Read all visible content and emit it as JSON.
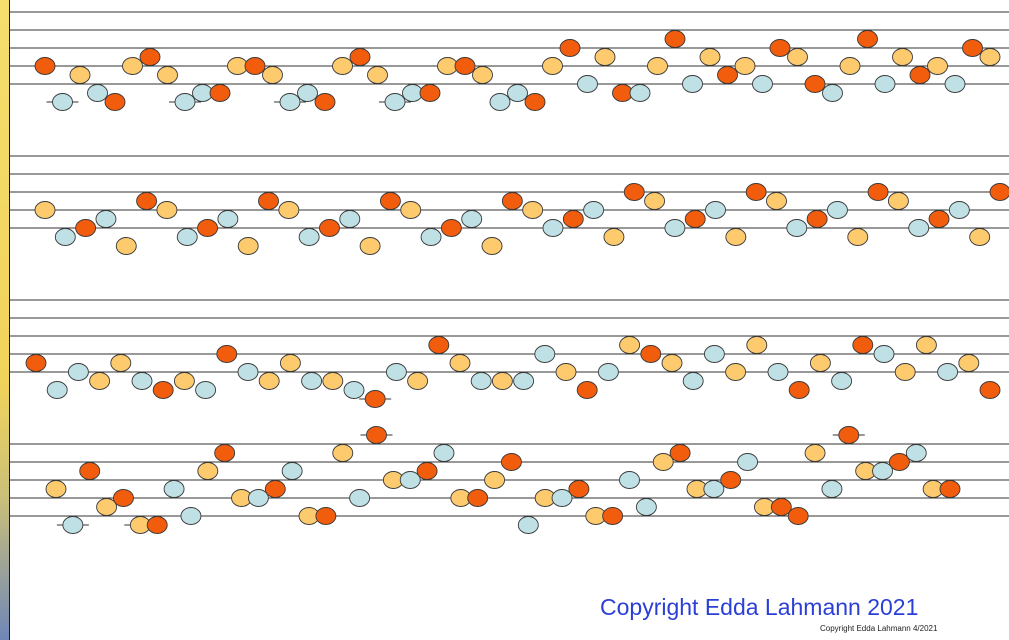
{
  "colors": {
    "blue": "#bfe0e4",
    "yellow": "#fdca6e",
    "red": "#f25c0d",
    "outline": "#3a3a3a",
    "line": "#333333",
    "copyright": "#2b3fd6"
  },
  "copyright": {
    "main": "Copyright Edda Lahmann 2021",
    "small": "Copyright Edda Lahmann 4/2021"
  },
  "systems": [
    {
      "notes": [
        {
          "c": "red",
          "p": 4
        },
        {
          "c": "blue",
          "p": 8,
          "l": 1
        },
        {
          "c": "yellow",
          "p": 5
        },
        {
          "c": "blue",
          "p": 7
        },
        {
          "c": "red",
          "p": 8
        },
        {
          "c": "yellow",
          "p": 4
        },
        {
          "c": "red",
          "p": 3
        },
        {
          "c": "yellow",
          "p": 5
        },
        {
          "c": "blue",
          "p": 8,
          "l": 1
        },
        {
          "c": "blue",
          "p": 7
        },
        {
          "c": "red",
          "p": 7
        },
        {
          "c": "yellow",
          "p": 4
        },
        {
          "c": "red",
          "p": 4
        },
        {
          "c": "yellow",
          "p": 5
        },
        {
          "c": "blue",
          "p": 8,
          "l": 1
        },
        {
          "c": "blue",
          "p": 7
        },
        {
          "c": "red",
          "p": 8
        },
        {
          "c": "yellow",
          "p": 4
        },
        {
          "c": "red",
          "p": 3
        },
        {
          "c": "yellow",
          "p": 5
        },
        {
          "c": "blue",
          "p": 8,
          "l": 1
        },
        {
          "c": "blue",
          "p": 7
        },
        {
          "c": "red",
          "p": 7
        },
        {
          "c": "yellow",
          "p": 4
        },
        {
          "c": "red",
          "p": 4
        },
        {
          "c": "yellow",
          "p": 5
        },
        {
          "c": "blue",
          "p": 8
        },
        {
          "c": "blue",
          "p": 7
        },
        {
          "c": "red",
          "p": 8
        },
        {
          "c": "yellow",
          "p": 4
        },
        {
          "c": "red",
          "p": 2
        },
        {
          "c": "blue",
          "p": 6
        },
        {
          "c": "yellow",
          "p": 3
        },
        {
          "c": "red",
          "p": 7
        },
        {
          "c": "blue",
          "p": 7
        },
        {
          "c": "yellow",
          "p": 4
        },
        {
          "c": "red",
          "p": 1
        },
        {
          "c": "blue",
          "p": 6
        },
        {
          "c": "yellow",
          "p": 3
        },
        {
          "c": "red",
          "p": 5
        },
        {
          "c": "yellow",
          "p": 4
        },
        {
          "c": "blue",
          "p": 6
        },
        {
          "c": "red",
          "p": 2
        },
        {
          "c": "yellow",
          "p": 3
        },
        {
          "c": "red",
          "p": 6
        },
        {
          "c": "blue",
          "p": 7
        },
        {
          "c": "yellow",
          "p": 4
        },
        {
          "c": "red",
          "p": 1
        },
        {
          "c": "blue",
          "p": 6
        },
        {
          "c": "yellow",
          "p": 3
        },
        {
          "c": "red",
          "p": 5
        },
        {
          "c": "yellow",
          "p": 4
        },
        {
          "c": "blue",
          "p": 6
        },
        {
          "c": "red",
          "p": 2
        },
        {
          "c": "yellow",
          "p": 3
        }
      ]
    },
    {
      "notes": [
        {
          "c": "yellow",
          "p": 4
        },
        {
          "c": "blue",
          "p": 7
        },
        {
          "c": "red",
          "p": 6
        },
        {
          "c": "blue",
          "p": 5
        },
        {
          "c": "yellow",
          "p": 8
        },
        {
          "c": "red",
          "p": 3
        },
        {
          "c": "yellow",
          "p": 4
        },
        {
          "c": "blue",
          "p": 7
        },
        {
          "c": "red",
          "p": 6
        },
        {
          "c": "blue",
          "p": 5
        },
        {
          "c": "yellow",
          "p": 8
        },
        {
          "c": "red",
          "p": 3
        },
        {
          "c": "yellow",
          "p": 4
        },
        {
          "c": "blue",
          "p": 7
        },
        {
          "c": "red",
          "p": 6
        },
        {
          "c": "blue",
          "p": 5
        },
        {
          "c": "yellow",
          "p": 8
        },
        {
          "c": "red",
          "p": 3
        },
        {
          "c": "yellow",
          "p": 4
        },
        {
          "c": "blue",
          "p": 7
        },
        {
          "c": "red",
          "p": 6
        },
        {
          "c": "blue",
          "p": 5
        },
        {
          "c": "yellow",
          "p": 8
        },
        {
          "c": "red",
          "p": 3
        },
        {
          "c": "yellow",
          "p": 4
        },
        {
          "c": "blue",
          "p": 6
        },
        {
          "c": "red",
          "p": 5
        },
        {
          "c": "blue",
          "p": 4
        },
        {
          "c": "yellow",
          "p": 7
        },
        {
          "c": "red",
          "p": 2
        },
        {
          "c": "yellow",
          "p": 3
        },
        {
          "c": "blue",
          "p": 6
        },
        {
          "c": "red",
          "p": 5
        },
        {
          "c": "blue",
          "p": 4
        },
        {
          "c": "yellow",
          "p": 7
        },
        {
          "c": "red",
          "p": 2
        },
        {
          "c": "yellow",
          "p": 3
        },
        {
          "c": "blue",
          "p": 6
        },
        {
          "c": "red",
          "p": 5
        },
        {
          "c": "blue",
          "p": 4
        },
        {
          "c": "yellow",
          "p": 7
        },
        {
          "c": "red",
          "p": 2
        },
        {
          "c": "yellow",
          "p": 3
        },
        {
          "c": "blue",
          "p": 6
        },
        {
          "c": "red",
          "p": 5
        },
        {
          "c": "blue",
          "p": 4
        },
        {
          "c": "yellow",
          "p": 7
        },
        {
          "c": "red",
          "p": 2
        }
      ]
    },
    {
      "notes": [
        {
          "c": "red",
          "p": 5
        },
        {
          "c": "blue",
          "p": 8
        },
        {
          "c": "blue",
          "p": 6
        },
        {
          "c": "yellow",
          "p": 7
        },
        {
          "c": "yellow",
          "p": 5
        },
        {
          "c": "blue",
          "p": 7
        },
        {
          "c": "red",
          "p": 8
        },
        {
          "c": "yellow",
          "p": 7
        },
        {
          "c": "blue",
          "p": 8
        },
        {
          "c": "red",
          "p": 4
        },
        {
          "c": "blue",
          "p": 6
        },
        {
          "c": "yellow",
          "p": 7
        },
        {
          "c": "yellow",
          "p": 5
        },
        {
          "c": "blue",
          "p": 7
        },
        {
          "c": "yellow",
          "p": 7
        },
        {
          "c": "blue",
          "p": 8
        },
        {
          "c": "red",
          "p": 9,
          "l": 1
        },
        {
          "c": "blue",
          "p": 6
        },
        {
          "c": "yellow",
          "p": 7
        },
        {
          "c": "red",
          "p": 3
        },
        {
          "c": "yellow",
          "p": 5
        },
        {
          "c": "blue",
          "p": 7
        },
        {
          "c": "yellow",
          "p": 7
        },
        {
          "c": "blue",
          "p": 7
        },
        {
          "c": "blue",
          "p": 4
        },
        {
          "c": "yellow",
          "p": 6
        },
        {
          "c": "red",
          "p": 8
        },
        {
          "c": "blue",
          "p": 6
        },
        {
          "c": "yellow",
          "p": 3
        },
        {
          "c": "red",
          "p": 4
        },
        {
          "c": "yellow",
          "p": 5
        },
        {
          "c": "blue",
          "p": 7
        },
        {
          "c": "blue",
          "p": 4
        },
        {
          "c": "yellow",
          "p": 6
        },
        {
          "c": "yellow",
          "p": 3
        },
        {
          "c": "blue",
          "p": 6
        },
        {
          "c": "red",
          "p": 8
        },
        {
          "c": "yellow",
          "p": 5
        },
        {
          "c": "blue",
          "p": 7
        },
        {
          "c": "red",
          "p": 3
        },
        {
          "c": "blue",
          "p": 4
        },
        {
          "c": "yellow",
          "p": 6
        },
        {
          "c": "yellow",
          "p": 3
        },
        {
          "c": "blue",
          "p": 6
        },
        {
          "c": "yellow",
          "p": 5
        },
        {
          "c": "red",
          "p": 8
        }
      ]
    },
    {
      "notes": [
        {
          "c": "yellow",
          "p": 7
        },
        {
          "c": "blue",
          "p": 11,
          "l": 1
        },
        {
          "c": "red",
          "p": 5
        },
        {
          "c": "yellow",
          "p": 9
        },
        {
          "c": "red",
          "p": 8
        },
        {
          "c": "yellow",
          "p": 11,
          "l": 1
        },
        {
          "c": "red",
          "p": 11
        },
        {
          "c": "blue",
          "p": 7
        },
        {
          "c": "blue",
          "p": 10
        },
        {
          "c": "yellow",
          "p": 5
        },
        {
          "c": "red",
          "p": 3
        },
        {
          "c": "yellow",
          "p": 8
        },
        {
          "c": "blue",
          "p": 8
        },
        {
          "c": "red",
          "p": 7
        },
        {
          "c": "blue",
          "p": 5
        },
        {
          "c": "yellow",
          "p": 10
        },
        {
          "c": "red",
          "p": 10
        },
        {
          "c": "yellow",
          "p": 3
        },
        {
          "c": "blue",
          "p": 8
        },
        {
          "c": "red",
          "p": 1,
          "l": 1
        },
        {
          "c": "yellow",
          "p": 6
        },
        {
          "c": "blue",
          "p": 6
        },
        {
          "c": "red",
          "p": 5
        },
        {
          "c": "blue",
          "p": 3
        },
        {
          "c": "yellow",
          "p": 8
        },
        {
          "c": "red",
          "p": 8
        },
        {
          "c": "yellow",
          "p": 6
        },
        {
          "c": "red",
          "p": 4
        },
        {
          "c": "blue",
          "p": 11
        },
        {
          "c": "yellow",
          "p": 8
        },
        {
          "c": "blue",
          "p": 8
        },
        {
          "c": "red",
          "p": 7
        },
        {
          "c": "yellow",
          "p": 10
        },
        {
          "c": "red",
          "p": 10
        },
        {
          "c": "blue",
          "p": 6
        },
        {
          "c": "blue",
          "p": 9
        },
        {
          "c": "yellow",
          "p": 4
        },
        {
          "c": "red",
          "p": 3
        },
        {
          "c": "yellow",
          "p": 7
        },
        {
          "c": "blue",
          "p": 7
        },
        {
          "c": "red",
          "p": 6
        },
        {
          "c": "blue",
          "p": 4
        },
        {
          "c": "yellow",
          "p": 9
        },
        {
          "c": "red",
          "p": 9
        },
        {
          "c": "red",
          "p": 10
        },
        {
          "c": "yellow",
          "p": 3
        },
        {
          "c": "blue",
          "p": 7
        },
        {
          "c": "red",
          "p": 1,
          "l": 1
        },
        {
          "c": "yellow",
          "p": 5
        },
        {
          "c": "blue",
          "p": 5
        },
        {
          "c": "red",
          "p": 4
        },
        {
          "c": "blue",
          "p": 3
        },
        {
          "c": "yellow",
          "p": 7
        },
        {
          "c": "red",
          "p": 7
        }
      ]
    }
  ]
}
